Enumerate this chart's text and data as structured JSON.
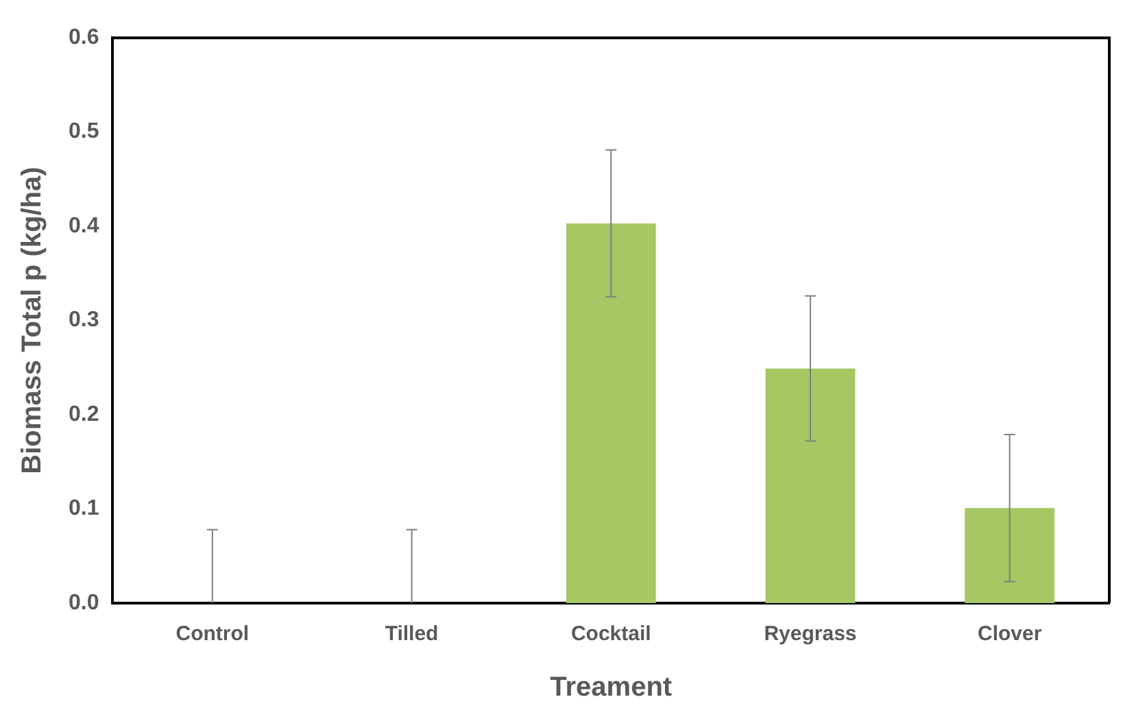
{
  "chart_data": {
    "type": "bar",
    "xlabel": "Treament",
    "ylabel": "Biomass Total p (kg/ha)",
    "categories": [
      "Control",
      "Tilled",
      "Cocktail",
      "Ryegrass",
      "Clover"
    ],
    "values": [
      0,
      0,
      0.403,
      0.249,
      0.101
    ],
    "errors": [
      [
        0,
        0.078
      ],
      [
        0,
        0.078
      ],
      0.078,
      0.077,
      0.078
    ],
    "color": "#a5c764",
    "ylim": [
      0,
      0.6
    ],
    "yticks": [
      {
        "value": 0,
        "label": "0.0"
      },
      {
        "value": 0.1,
        "label": "0.1"
      },
      {
        "value": 0.2,
        "label": "0.2"
      },
      {
        "value": 0.3,
        "label": "0.3"
      },
      {
        "value": 0.4,
        "label": "0.4"
      },
      {
        "value": 0.5,
        "label": "0.5"
      },
      {
        "value": 0.6,
        "label": "0.6"
      }
    ],
    "grid": false,
    "legend": false
  }
}
